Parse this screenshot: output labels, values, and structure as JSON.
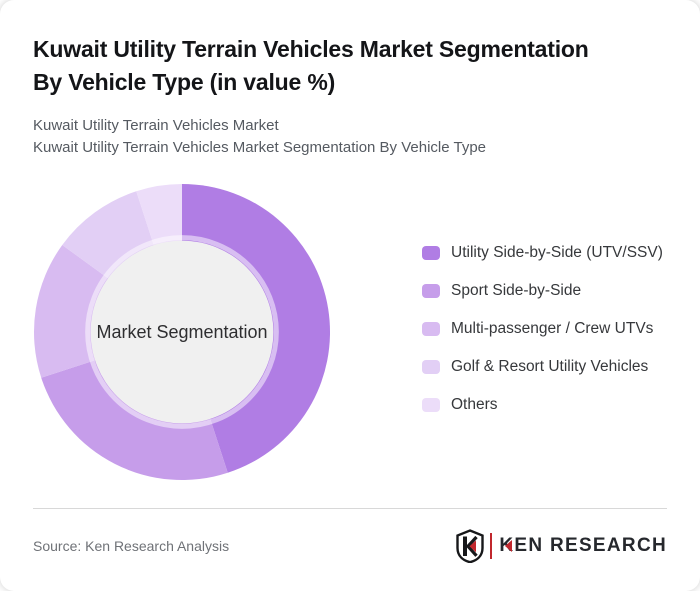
{
  "page": {
    "title_line1": "Kuwait Utility Terrain Vehicles Market Segmentation",
    "title_line2": "By Vehicle Type (in value %)",
    "subtitle_line1": "Kuwait Utility Terrain Vehicles Market",
    "subtitle_line2": "Kuwait Utility Terrain Vehicles Market Segmentation By Vehicle Type"
  },
  "chart_data": {
    "type": "pie",
    "variant": "donut",
    "title": "Kuwait Utility Terrain Vehicles Market Segmentation By Vehicle Type (in value %)",
    "center_label": "Market Segmentation",
    "labels": [
      "Utility Side-by-Side (UTV/SSV)",
      "Sport Side-by-Side",
      "Multi-passenger / Crew UTVs",
      "Golf & Resort Utility Vehicles",
      "Others"
    ],
    "values": [
      45,
      25,
      15,
      10,
      5
    ],
    "unit": "percent (of market value)",
    "colors": [
      "#b07de4",
      "#c69dea",
      "#d8bbf1",
      "#e2cff5",
      "#ecddf9"
    ],
    "inner_circle_color": "#f0f0f0",
    "start_angle_deg": 0,
    "direction": "clockwise",
    "legend_position": "right",
    "data_labels_shown": false
  },
  "footer": {
    "source": "Source: Ken Research Analysis",
    "logo_text": "KEN RESEARCH",
    "logo_red": "#c1272d"
  }
}
